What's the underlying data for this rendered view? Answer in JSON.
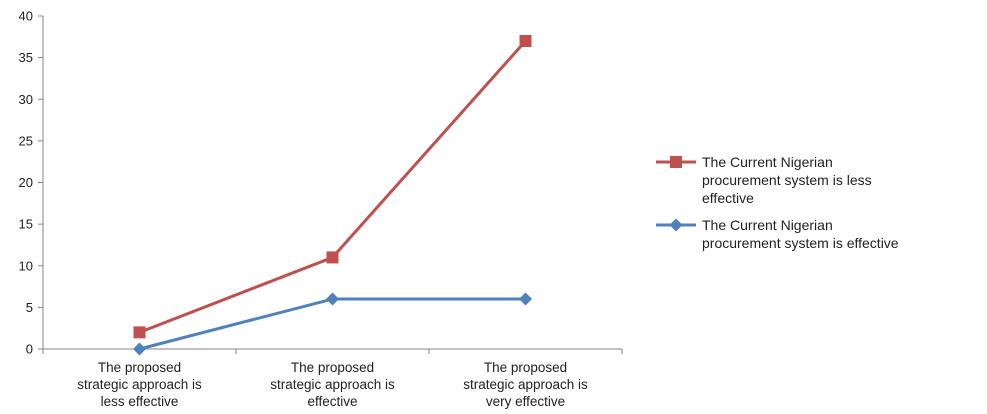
{
  "chart_data": {
    "type": "line",
    "title": "",
    "xlabel": "",
    "ylabel": "",
    "ylim": [
      0,
      40
    ],
    "y_ticks": [
      0,
      5,
      10,
      15,
      20,
      25,
      30,
      35,
      40
    ],
    "grid": false,
    "legend_position": "right",
    "categories": [
      [
        "The proposed",
        "strategic approach is",
        "less effective"
      ],
      [
        "The proposed",
        "strategic approach is",
        "effective"
      ],
      [
        "The proposed",
        "strategic approach is",
        "very effective"
      ]
    ],
    "series": [
      {
        "name": "The Current Nigerian procurement system is less effective",
        "legend_lines": [
          "The Current Nigerian",
          "procurement system is less",
          "effective"
        ],
        "values": [
          2,
          11,
          37
        ],
        "color": "#C0504D",
        "marker": "square"
      },
      {
        "name": "The Current Nigerian procurement system is effective",
        "legend_lines": [
          "The Current Nigerian",
          "procurement system is effective"
        ],
        "values": [
          0,
          6,
          6
        ],
        "color": "#4F81BD",
        "marker": "diamond"
      }
    ]
  }
}
